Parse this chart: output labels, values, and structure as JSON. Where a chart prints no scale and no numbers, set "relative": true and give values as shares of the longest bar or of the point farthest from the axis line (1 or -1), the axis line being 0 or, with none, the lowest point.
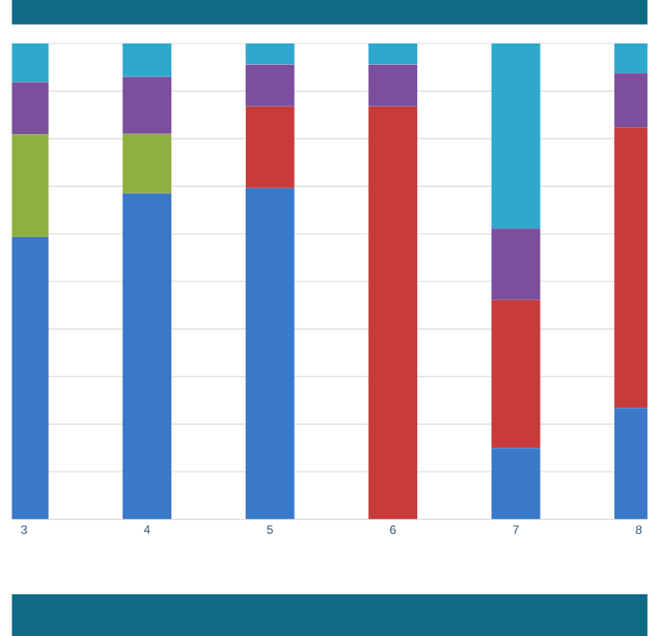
{
  "chart_data": {
    "type": "bar",
    "stacked": true,
    "relative": true,
    "grid": "y",
    "categories": [
      "3",
      "4",
      "5",
      "6",
      "7",
      "8"
    ],
    "series": [
      {
        "color": "#3a78c9",
        "values": [
          0.593,
          0.685,
          0.696,
          0,
          0.15,
          0.234
        ]
      },
      {
        "color": "#c93a3a",
        "values": [
          0,
          0,
          0.172,
          0.868,
          0.311,
          0.59
        ]
      },
      {
        "color": "#8db040",
        "values": [
          0.216,
          0.125,
          0,
          0,
          0,
          0
        ]
      },
      {
        "color": "#7b4f9d",
        "values": [
          0.11,
          0.12,
          0.088,
          0.088,
          0.15,
          0.114
        ]
      },
      {
        "color": "#2ea8cc",
        "values": [
          0.081,
          0.07,
          0.044,
          0.044,
          0.389,
          0.062
        ]
      }
    ]
  }
}
